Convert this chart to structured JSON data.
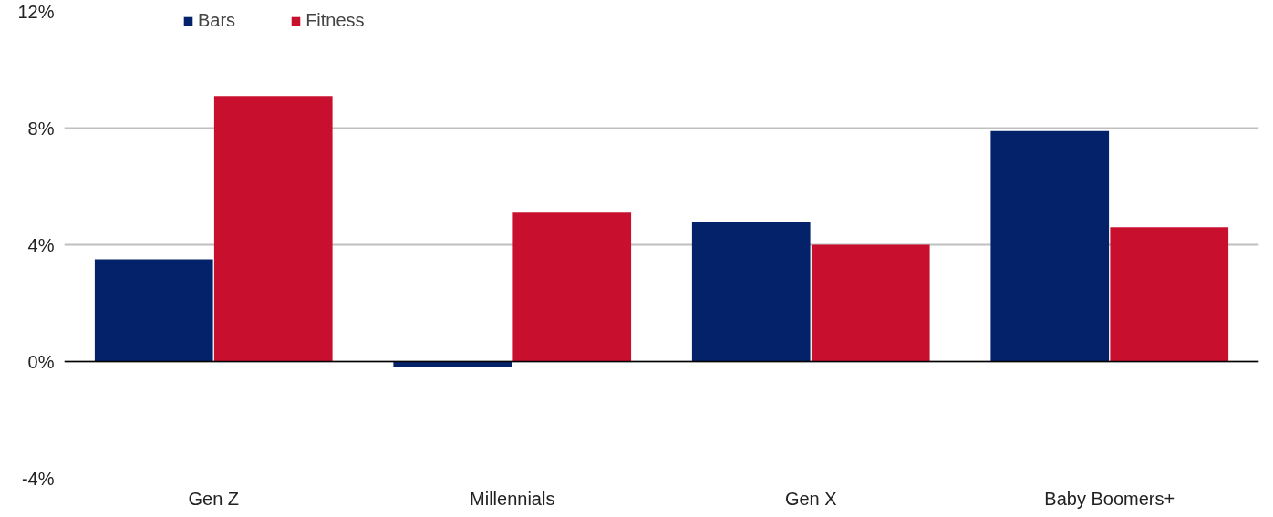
{
  "chart_data": {
    "type": "bar",
    "categories": [
      "Gen Z",
      "Millennials",
      "Gen X",
      "Baby Boomers+"
    ],
    "series": [
      {
        "name": "Bars",
        "color": "#03226a",
        "values": [
          3.5,
          -0.2,
          4.8,
          7.9
        ]
      },
      {
        "name": "Fitness",
        "color": "#c8102e",
        "values": [
          9.1,
          5.1,
          4.0,
          4.6
        ]
      }
    ],
    "ylim": [
      -4,
      12
    ],
    "yticks": [
      {
        "value": -4,
        "label": "-4%"
      },
      {
        "value": 0,
        "label": "0%"
      },
      {
        "value": 4,
        "label": "4%"
      },
      {
        "value": 8,
        "label": "8%"
      },
      {
        "value": 12,
        "label": "12%"
      }
    ],
    "grid": "y",
    "legend": "top left"
  }
}
